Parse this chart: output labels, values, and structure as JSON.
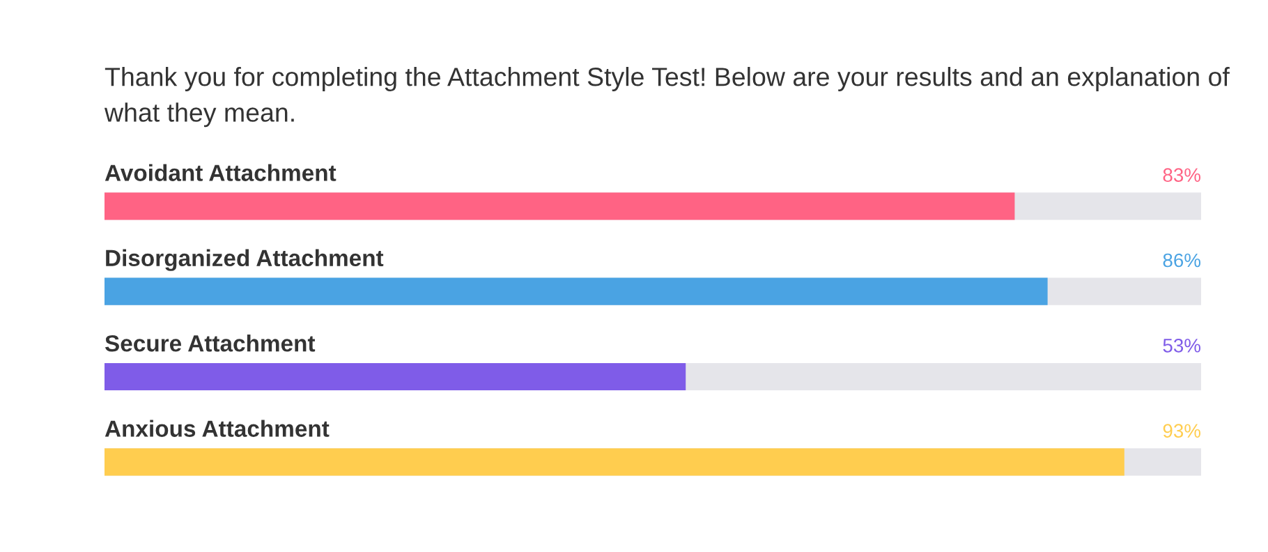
{
  "chart_data": {
    "type": "bar",
    "orientation": "horizontal",
    "title": "Thank you for completing the Attachment Style Test! Below are your results and an explanation of what they mean.",
    "categories": [
      "Avoidant Attachment",
      "Disorganized Attachment",
      "Secure Attachment",
      "Anxious Attachment"
    ],
    "series": [
      {
        "colors": [
          "#ff6384",
          "#4aa3e3",
          "#7f5ce8",
          "#ffcd4f"
        ],
        "values": [
          83,
          86,
          53,
          93
        ],
        "value_labels": [
          "83%",
          "86%",
          "53%",
          "93%"
        ]
      }
    ],
    "xlim": [
      0,
      100
    ],
    "legend": false
  }
}
